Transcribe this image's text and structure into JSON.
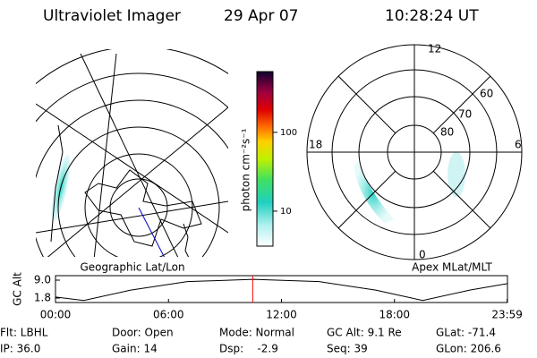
{
  "header": {
    "title": "Ultraviolet Imager",
    "date": "29 Apr 07",
    "time": "10:28:24 UT"
  },
  "left_panel": {
    "label": "Geographic Lat/Lon"
  },
  "right_panel": {
    "label": "Apex MLat/MLT",
    "mlt_labels": [
      "12",
      "18",
      "6",
      "0"
    ],
    "lat_labels": [
      "60",
      "70",
      "80"
    ]
  },
  "colorbar": {
    "label": "photon cm⁻²s⁻¹",
    "log": true,
    "lim": [
      3.6,
      590
    ],
    "ticks": [
      10,
      100
    ]
  },
  "altitude_plot": {
    "ylabel": "GC Alt",
    "ylim": [
      0,
      10.8
    ],
    "yticks": [
      {
        "value": 9,
        "label": "9.0"
      },
      1.8
    ],
    "xlim": [
      0,
      24
    ],
    "xticks": [
      {
        "value": 0,
        "label": "00:00"
      },
      {
        "value": 6,
        "label": "06:00"
      },
      {
        "value": 12,
        "label": "12:00"
      },
      {
        "value": 18,
        "label": "18:00"
      },
      {
        "value": 23.983,
        "label": "23:59"
      }
    ],
    "x": [
      0,
      1.5,
      4,
      7,
      10.5,
      14,
      17,
      19.5,
      22,
      24
    ],
    "values": [
      2.2,
      0.8,
      5.0,
      8.4,
      9.3,
      8.4,
      5.0,
      0.8,
      5.0,
      7.6
    ],
    "marker": 10.473,
    "marker_color": "#ff0000"
  },
  "status": [
    [
      "Flt: LBHL",
      "Door: Open",
      "Mode: Normal",
      "GC Alt: 9.1 Re",
      "GLat: -71.4"
    ],
    [
      "IP: 36.0",
      "Gain: 14",
      "Dsp:    -2.9",
      "Seq: 39",
      "GLon: 206.6"
    ]
  ]
}
